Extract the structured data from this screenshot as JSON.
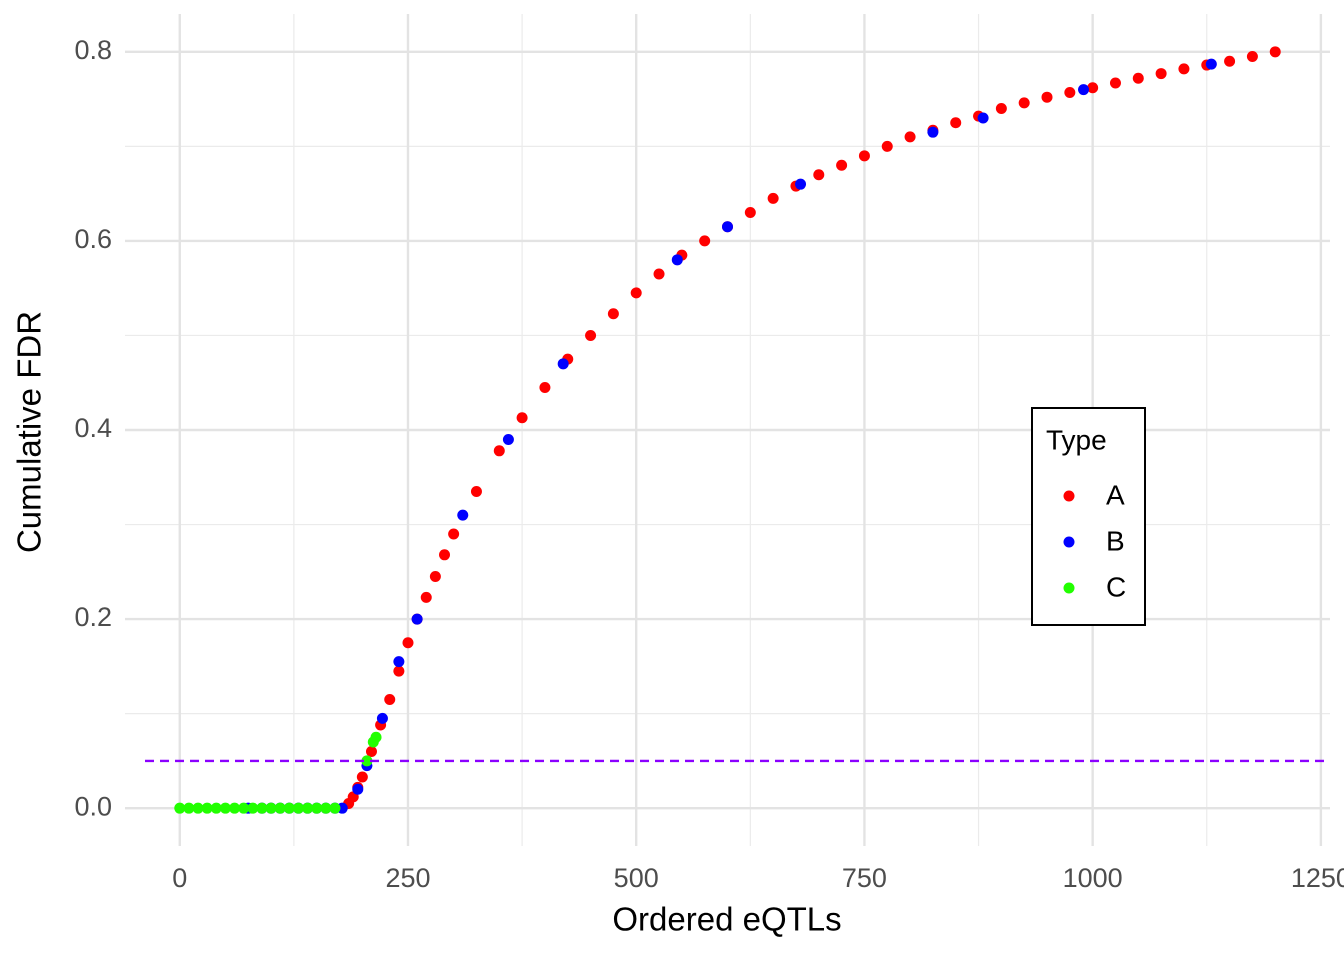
{
  "chart_data": {
    "type": "scatter",
    "x_label": "Ordered eQTLs",
    "y_label": "Cumulative FDR",
    "xlim": [
      -60,
      1260
    ],
    "ylim": [
      -0.04,
      0.84
    ],
    "xticks": [
      0,
      250,
      500,
      750,
      1000,
      1250
    ],
    "yticks": [
      {
        "value": 0,
        "label": "0.0"
      },
      0.2,
      0.4,
      0.6,
      0.8
    ],
    "grid": true,
    "legend_title": "Type",
    "legend_position": "center-right",
    "hline": {
      "value": 0.05,
      "color": "#8b00ff"
    },
    "series": [
      {
        "name": "A",
        "color": "#ff0000",
        "x": [
          185,
          190,
          195,
          200,
          210,
          220,
          230,
          240,
          250,
          260,
          270,
          280,
          290,
          300,
          325,
          350,
          375,
          400,
          425,
          450,
          475,
          500,
          525,
          550,
          575,
          600,
          625,
          650,
          675,
          700,
          725,
          750,
          775,
          800,
          825,
          850,
          875,
          900,
          925,
          950,
          975,
          1000,
          1025,
          1050,
          1075,
          1100,
          1125,
          1150,
          1175,
          1200
        ],
        "values": [
          0.005,
          0.012,
          0.022,
          0.033,
          0.06,
          0.088,
          0.115,
          0.145,
          0.175,
          0.2,
          0.223,
          0.245,
          0.268,
          0.29,
          0.335,
          0.378,
          0.413,
          0.445,
          0.475,
          0.5,
          0.523,
          0.545,
          0.565,
          0.585,
          0.6,
          0.615,
          0.63,
          0.645,
          0.658,
          0.67,
          0.68,
          0.69,
          0.7,
          0.71,
          0.717,
          0.725,
          0.732,
          0.74,
          0.746,
          0.752,
          0.757,
          0.762,
          0.767,
          0.772,
          0.777,
          0.782,
          0.786,
          0.79,
          0.795,
          0.8
        ]
      },
      {
        "name": "B",
        "color": "#0000ff",
        "x": [
          75,
          90,
          100,
          110,
          120,
          130,
          140,
          150,
          160,
          170,
          178,
          195,
          205,
          222,
          240,
          260,
          310,
          360,
          420,
          545,
          600,
          680,
          825,
          880,
          990,
          1130
        ],
        "values": [
          0,
          0,
          0,
          0,
          0,
          0,
          0,
          0,
          0,
          0,
          0,
          0.02,
          0.045,
          0.095,
          0.155,
          0.2,
          0.31,
          0.39,
          0.47,
          0.58,
          0.615,
          0.66,
          0.715,
          0.73,
          0.76,
          0.787
        ]
      },
      {
        "name": "C",
        "color": "#22ff00",
        "x": [
          0,
          10,
          20,
          30,
          40,
          50,
          60,
          70,
          80,
          90,
          100,
          110,
          120,
          130,
          140,
          150,
          160,
          170,
          205,
          212,
          215
        ],
        "values": [
          0,
          0,
          0,
          0,
          0,
          0,
          0,
          0,
          0,
          0,
          0,
          0,
          0,
          0,
          0,
          0,
          0,
          0,
          0.05,
          0.07,
          0.075
        ]
      }
    ]
  }
}
